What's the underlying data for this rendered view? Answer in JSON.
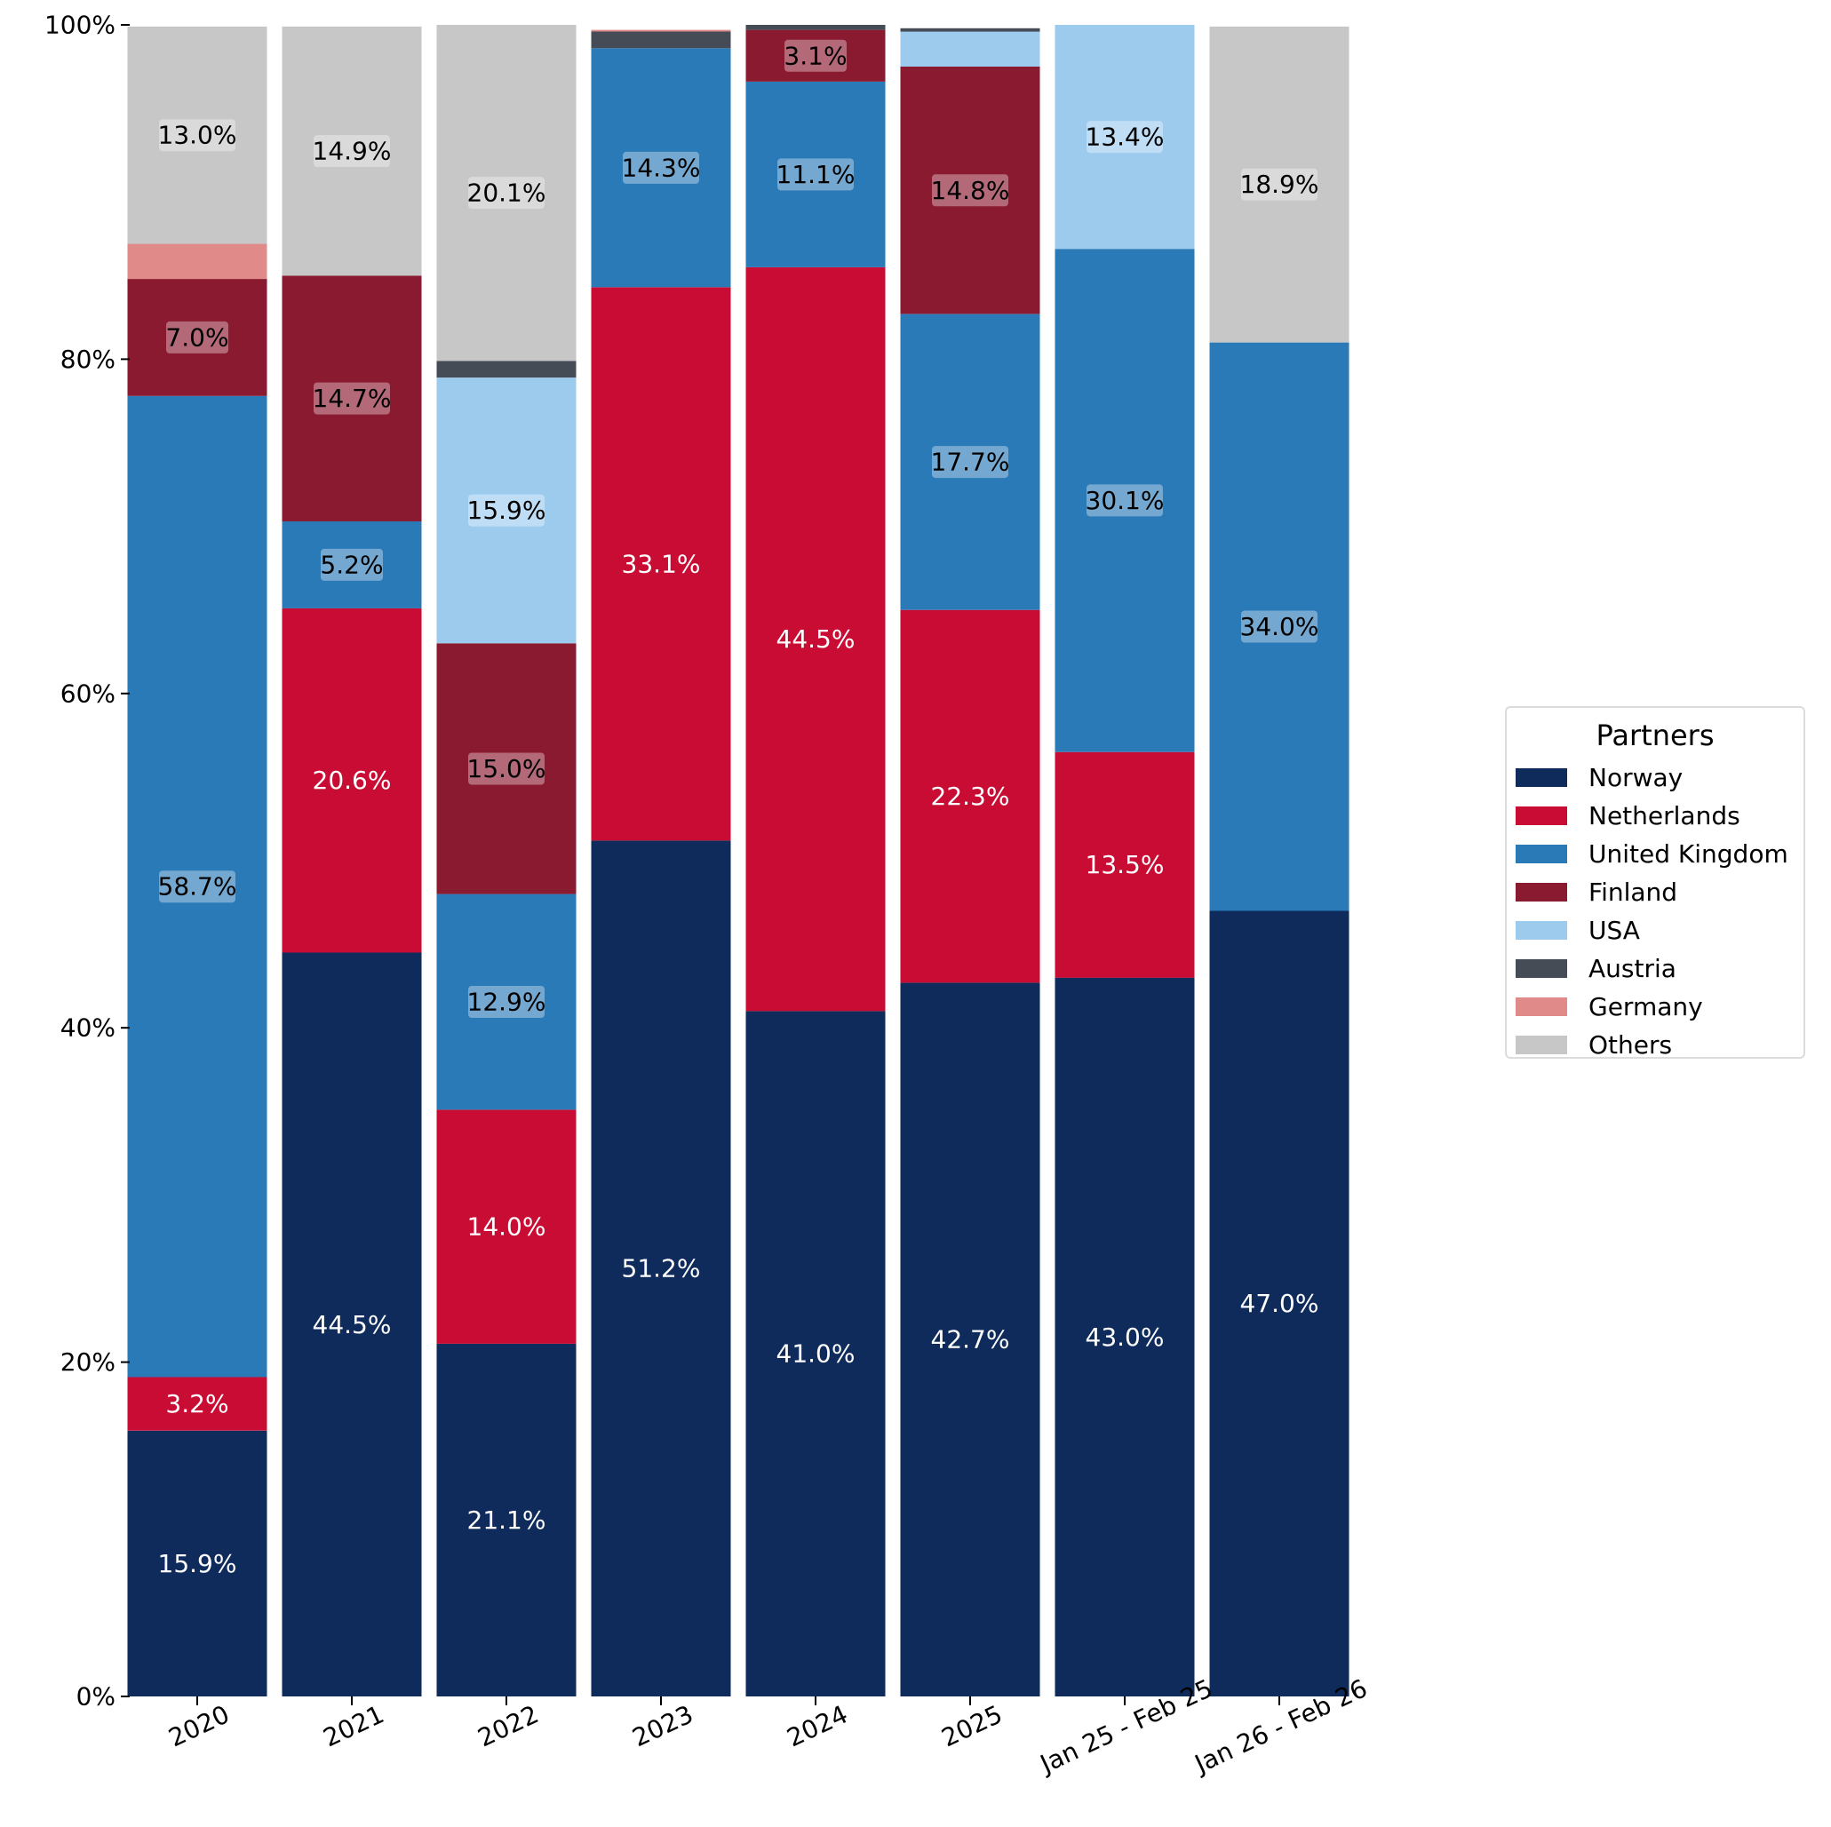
{
  "chart_data": {
    "type": "bar",
    "stacked": true,
    "percent_scale": true,
    "categories": [
      "2020",
      "2021",
      "2022",
      "2023",
      "2024",
      "2025",
      "Jan 25 - Feb 25",
      "Jan 26 - Feb 26"
    ],
    "ylim": [
      0,
      100
    ],
    "yticks": [
      "0%",
      "20%",
      "40%",
      "60%",
      "80%",
      "100%"
    ],
    "ytick_values": [
      0,
      20,
      40,
      60,
      80,
      100
    ],
    "xlabel": "",
    "ylabel": "",
    "title": "",
    "grid": false,
    "legend": {
      "title": "Partners",
      "placement": "right"
    },
    "series": [
      {
        "name": "Norway",
        "color": "#0e2b5c",
        "label_color": "#ffffff",
        "label_box": false,
        "values": [
          15.9,
          44.5,
          21.1,
          51.2,
          41.0,
          42.7,
          43.0,
          47.0
        ],
        "labels": [
          "15.9%",
          "44.5%",
          "21.1%",
          "51.2%",
          "41.0%",
          "42.7%",
          "43.0%",
          "47.0%"
        ]
      },
      {
        "name": "Netherlands",
        "color": "#c90c34",
        "label_color": "#ffffff",
        "label_box": false,
        "values": [
          3.2,
          20.6,
          14.0,
          33.1,
          44.5,
          22.3,
          13.5,
          0
        ],
        "labels": [
          "3.2%",
          "20.6%",
          "14.0%",
          "33.1%",
          "44.5%",
          "22.3%",
          "13.5%",
          ""
        ]
      },
      {
        "name": "United Kingdom",
        "color": "#2a7ab8",
        "label_color": "#000000",
        "label_box": true,
        "values": [
          58.7,
          5.2,
          12.9,
          14.3,
          11.1,
          17.7,
          30.1,
          34.0
        ],
        "labels": [
          "58.7%",
          "5.2%",
          "12.9%",
          "14.3%",
          "11.1%",
          "17.7%",
          "30.1%",
          "34.0%"
        ]
      },
      {
        "name": "Finland",
        "color": "#8a1a30",
        "label_color": "#000000",
        "label_box": true,
        "values": [
          7.0,
          14.7,
          15.0,
          0,
          3.1,
          14.8,
          0,
          0
        ],
        "labels": [
          "7.0%",
          "14.7%",
          "15.0%",
          "",
          "3.1%",
          "14.8%",
          "",
          ""
        ]
      },
      {
        "name": "USA",
        "color": "#9dcbee",
        "label_color": "#000000",
        "label_box": true,
        "values": [
          0,
          0,
          15.9,
          0,
          0,
          2.1,
          13.4,
          0
        ],
        "labels": [
          "",
          "",
          "15.9%",
          "",
          "",
          "",
          "13.4%",
          ""
        ]
      },
      {
        "name": "Austria",
        "color": "#454c56",
        "label_color": "#000000",
        "label_box": true,
        "values": [
          0,
          0,
          1.0,
          1.0,
          0.3,
          0.2,
          0,
          0
        ],
        "labels": [
          "",
          "",
          "",
          "",
          "",
          "",
          "",
          ""
        ]
      },
      {
        "name": "Germany",
        "color": "#e08a8a",
        "label_color": "#000000",
        "label_box": true,
        "values": [
          2.1,
          0,
          0,
          0.1,
          0,
          0,
          0,
          0
        ],
        "labels": [
          "",
          "",
          "",
          "",
          "",
          "",
          "",
          ""
        ]
      },
      {
        "name": "Others",
        "color": "#c7c7c7",
        "label_color": "#000000",
        "label_box": true,
        "values": [
          13.0,
          14.9,
          20.1,
          0,
          0,
          0,
          0,
          18.9
        ],
        "labels": [
          "13.0%",
          "14.9%",
          "20.1%",
          "",
          "",
          "",
          "",
          "18.9%"
        ]
      }
    ]
  }
}
